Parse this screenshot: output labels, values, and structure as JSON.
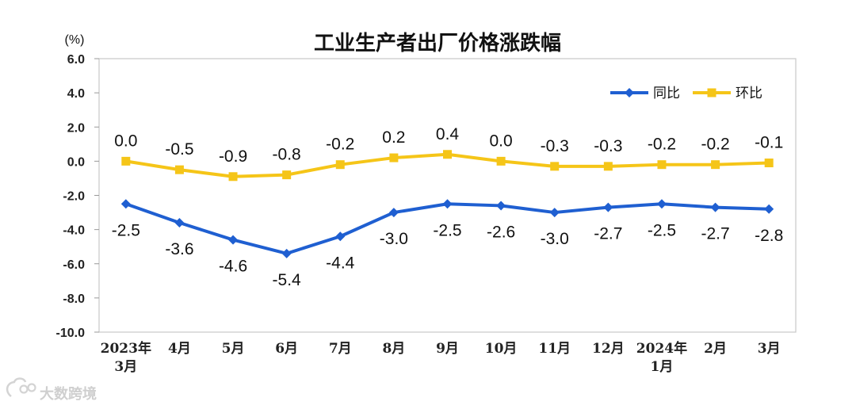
{
  "chart_data": {
    "type": "line",
    "title": "工业生产者出厂价格涨跌幅",
    "unit_label": "(%)",
    "y_ticks": [
      "6.0",
      "4.0",
      "2.0",
      "0.0",
      "-2.0",
      "-4.0",
      "-6.0",
      "-8.0",
      "-10.0"
    ],
    "ylim": [
      -10,
      6
    ],
    "categories": [
      [
        "2023年",
        "3月"
      ],
      [
        "4月"
      ],
      [
        "5月"
      ],
      [
        "6月"
      ],
      [
        "7月"
      ],
      [
        "8月"
      ],
      [
        "9月"
      ],
      [
        "10月"
      ],
      [
        "11月"
      ],
      [
        "12月"
      ],
      [
        "2024年",
        "1月"
      ],
      [
        "2月"
      ],
      [
        "3月"
      ]
    ],
    "series": [
      {
        "name": "同比",
        "color": "#1f5fd1",
        "marker": "diamond",
        "values": [
          -2.5,
          -3.6,
          -4.6,
          -5.4,
          -4.4,
          -3.0,
          -2.5,
          -2.6,
          -3.0,
          -2.7,
          -2.5,
          -2.7,
          -2.8
        ],
        "labels": [
          "-2.5",
          "-3.6",
          "-4.6",
          "-5.4",
          "-4.4",
          "-3.0",
          "-2.5",
          "-2.6",
          "-3.0",
          "-2.7",
          "-2.5",
          "-2.7",
          "-2.8"
        ],
        "label_position": "below"
      },
      {
        "name": "环比",
        "color": "#f5c518",
        "marker": "square",
        "values": [
          0.0,
          -0.5,
          -0.9,
          -0.8,
          -0.2,
          0.2,
          0.4,
          0.0,
          -0.3,
          -0.3,
          -0.2,
          -0.2,
          -0.1
        ],
        "labels": [
          "0.0",
          "-0.5",
          "-0.9",
          "-0.8",
          "-0.2",
          "0.2",
          "0.4",
          "0.0",
          "-0.3",
          "-0.3",
          "-0.2",
          "-0.2",
          "-0.1"
        ],
        "label_position": "above"
      }
    ],
    "legend_position": "top-right",
    "grid": false
  },
  "watermark": {
    "text": "大数跨境"
  }
}
